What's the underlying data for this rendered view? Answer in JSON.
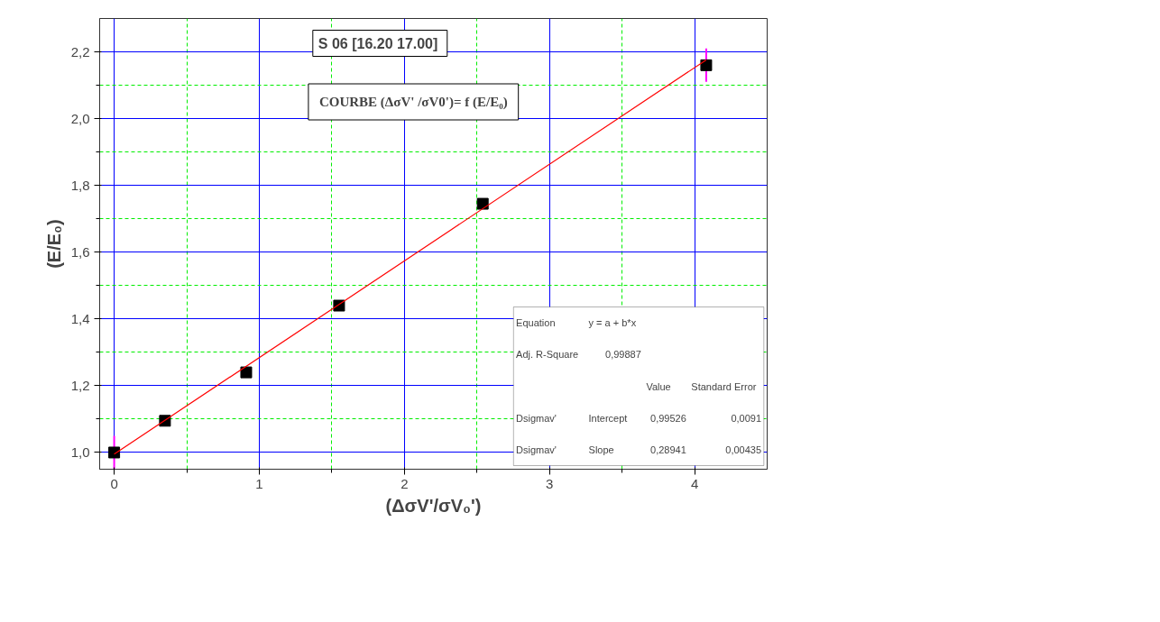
{
  "chart_data": {
    "type": "scatter",
    "title": "S 06 [16.20  17.00]",
    "subtitle": "COURBE (ΔσV' /σV0')= f (E/E₀)",
    "xlabel": "(ΔσV'/σV₀')",
    "ylabel": "(E/E₀)",
    "x": [
      0,
      0.35,
      0.91,
      1.55,
      2.54,
      4.08
    ],
    "series": [
      {
        "color": "#000000",
        "marker": "square",
        "values": [
          1.0,
          1.095,
          1.24,
          1.44,
          1.745,
          2.16
        ],
        "errors": [
          0.05,
          null,
          null,
          null,
          null,
          0.05
        ]
      },
      {
        "type": "line",
        "color": "#ff0000",
        "x": [
          0,
          4.08
        ],
        "values": [
          0.995,
          2.176
        ]
      }
    ],
    "xlim": [
      -0.1,
      4.5
    ],
    "xticks": [
      0,
      {
        "value": 0.5,
        "label": null
      },
      1,
      {
        "value": 1.5,
        "label": null
      },
      2,
      {
        "value": 2.5,
        "label": null
      },
      3,
      {
        "value": 3.5,
        "label": null
      },
      4
    ],
    "ylim": [
      0.95,
      2.3
    ],
    "yticks": [
      {
        "value": 1.0,
        "label": "1,0"
      },
      {
        "value": 1.1,
        "label": null
      },
      {
        "value": 1.2,
        "label": "1,2"
      },
      {
        "value": 1.3,
        "label": null
      },
      {
        "value": 1.4,
        "label": "1,4"
      },
      {
        "value": 1.5,
        "label": null
      },
      {
        "value": 1.6,
        "label": "1,6"
      },
      {
        "value": 1.7,
        "label": null
      },
      {
        "value": 1.8,
        "label": "1,8"
      },
      {
        "value": 1.9,
        "label": null
      },
      {
        "value": 2.0,
        "label": "2,0"
      },
      {
        "value": 2.1,
        "label": null
      },
      {
        "value": 2.2,
        "label": "2,2"
      }
    ],
    "grid": true,
    "annotations": [
      "Equation",
      "y = a + b*x",
      "Adj. R-Square",
      "0,99887",
      "Value",
      "Standard Error",
      "Dsigmav'",
      "Intercept",
      "0,99526",
      "0,0091",
      "Dsigmav'",
      "Slope",
      "0,28941",
      "0,00435"
    ]
  }
}
